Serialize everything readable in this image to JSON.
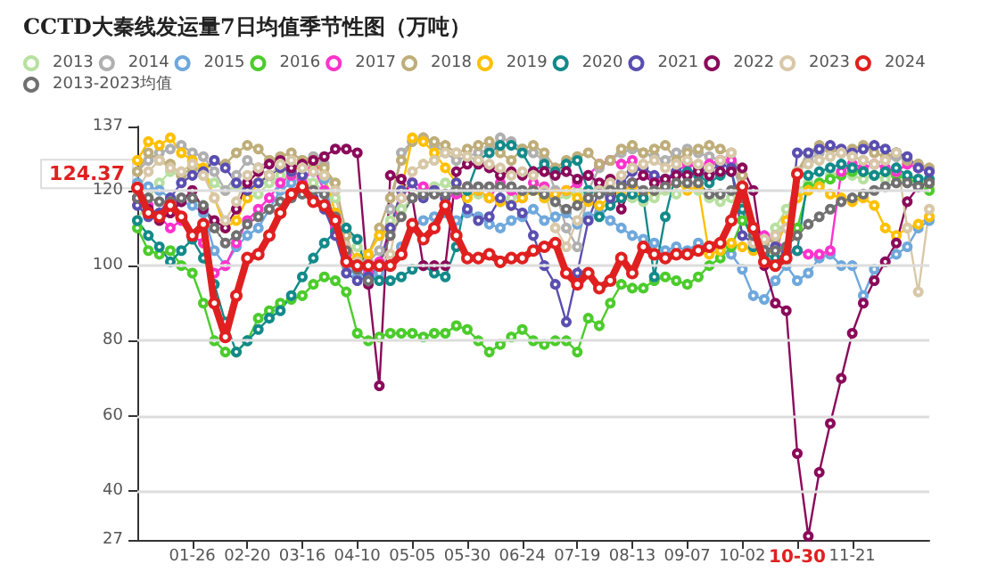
{
  "chart_data": {
    "type": "line",
    "title": "CCTD大秦线发运量7日均值季节性图（万吨）",
    "categories": [
      null,
      null,
      null,
      null,
      null,
      "01-26",
      null,
      null,
      null,
      null,
      "02-20",
      null,
      null,
      null,
      null,
      "03-16",
      null,
      null,
      null,
      null,
      "04-10",
      null,
      null,
      null,
      null,
      "05-05",
      null,
      null,
      null,
      null,
      "05-30",
      null,
      null,
      null,
      null,
      "06-24",
      null,
      null,
      null,
      null,
      "07-19",
      null,
      null,
      null,
      null,
      "08-13",
      null,
      null,
      null,
      null,
      "09-07",
      null,
      null,
      null,
      null,
      "10-02",
      null,
      null,
      null,
      null,
      "10-30",
      null,
      null,
      null,
      null,
      "11-21",
      null,
      null,
      null,
      null,
      null,
      null,
      null
    ],
    "series": [
      {
        "name": "2013",
        "color": "#b8e0a0",
        "values": [
          112,
          118,
          122,
          125,
          124,
          126,
          124,
          122,
          120,
          121,
          118,
          119,
          122,
          124,
          123,
          124,
          122,
          120,
          118,
          110,
          105,
          103,
          108,
          112,
          115,
          118,
          120,
          121,
          122,
          120,
          121,
          119,
          118,
          117,
          118,
          119,
          120,
          118,
          117,
          119,
          120,
          118,
          121,
          120,
          119,
          118,
          117,
          118,
          120,
          119,
          121,
          120,
          118,
          117,
          118,
          116,
          108,
          106,
          110,
          115,
          120,
          122,
          121,
          124,
          125,
          124,
          123,
          124,
          123,
          125,
          124,
          123,
          121
        ]
      },
      {
        "name": "2014",
        "color": "#b0b0b0",
        "values": [
          125,
          128,
          130,
          131,
          132,
          130,
          129,
          125,
          120,
          124,
          128,
          126,
          128,
          127,
          125,
          128,
          129,
          127,
          120,
          103,
          100,
          101,
          104,
          115,
          130,
          133,
          134,
          132,
          130,
          128,
          129,
          130,
          131,
          134,
          133,
          131,
          130,
          128,
          120,
          110,
          105,
          120,
          126,
          128,
          130,
          131,
          130,
          129,
          128,
          130,
          131,
          130,
          129,
          128,
          127,
          120,
          105,
          106,
          108,
          112,
          125,
          128,
          130,
          131,
          130,
          129,
          128,
          127,
          128,
          129,
          128,
          127,
          125
        ]
      },
      {
        "name": "2015",
        "color": "#6fa8dc",
        "values": [
          122,
          121,
          120,
          118,
          117,
          116,
          114,
          104,
          100,
          105,
          108,
          110,
          115,
          120,
          122,
          124,
          125,
          123,
          110,
          100,
          97,
          96,
          98,
          100,
          105,
          110,
          112,
          113,
          114,
          112,
          114,
          113,
          111,
          110,
          112,
          113,
          115,
          112,
          113,
          114,
          111,
          113,
          114,
          112,
          110,
          108,
          107,
          106,
          104,
          105,
          104,
          106,
          105,
          104,
          103,
          99,
          92,
          91,
          96,
          100,
          96,
          98,
          102,
          103,
          100,
          100,
          92,
          99,
          101,
          103,
          105,
          110,
          112
        ]
      },
      {
        "name": "2016",
        "color": "#4ccc2c",
        "values": [
          110,
          104,
          103,
          104,
          100,
          98,
          90,
          80,
          77,
          77,
          80,
          86,
          88,
          90,
          91,
          92,
          95,
          97,
          96,
          93,
          82,
          80,
          81,
          82,
          82,
          82,
          81,
          82,
          82,
          84,
          83,
          80,
          77,
          79,
          81,
          83,
          80,
          79,
          80,
          80,
          77,
          86,
          84,
          90,
          95,
          94,
          94,
          96,
          97,
          96,
          95,
          97,
          100,
          102,
          105,
          112,
          108,
          103,
          104,
          105,
          110,
          121,
          122,
          123,
          124,
          125,
          125,
          124,
          125,
          124,
          123,
          122,
          120
        ]
      },
      {
        "name": "2017",
        "color": "#ff33cc",
        "values": [
          118,
          116,
          113,
          110,
          112,
          108,
          106,
          98,
          100,
          106,
          112,
          115,
          118,
          122,
          124,
          122,
          126,
          120,
          110,
          103,
          100,
          98,
          101,
          110,
          118,
          122,
          121,
          120,
          118,
          119,
          121,
          120,
          118,
          122,
          120,
          118,
          122,
          121,
          119,
          120,
          122,
          124,
          127,
          128,
          127,
          128,
          124,
          123,
          122,
          125,
          127,
          126,
          127,
          128,
          128,
          124,
          110,
          108,
          107,
          104,
          104,
          103,
          103,
          104,
          125,
          127,
          126,
          127,
          126,
          125,
          127,
          126,
          125
        ]
      },
      {
        "name": "2018",
        "color": "#bfae7a",
        "values": [
          125,
          130,
          128,
          127,
          124,
          126,
          125,
          128,
          127,
          130,
          132,
          131,
          128,
          129,
          130,
          128,
          127,
          126,
          122,
          108,
          100,
          103,
          110,
          118,
          128,
          133,
          134,
          133,
          132,
          130,
          131,
          132,
          133,
          130,
          128,
          131,
          132,
          130,
          126,
          128,
          129,
          130,
          127,
          128,
          131,
          132,
          130,
          131,
          132,
          128,
          130,
          131,
          132,
          131,
          130,
          124,
          108,
          106,
          107,
          110,
          125,
          130,
          132,
          131,
          130,
          131,
          132,
          130,
          129,
          130,
          128,
          127,
          126
        ]
      },
      {
        "name": "2019",
        "color": "#ffc000",
        "values": [
          128,
          133,
          132,
          134,
          130,
          128,
          126,
          118,
          110,
          112,
          118,
          122,
          124,
          126,
          125,
          127,
          128,
          124,
          114,
          104,
          102,
          103,
          108,
          110,
          120,
          134,
          133,
          130,
          126,
          122,
          118,
          120,
          118,
          117,
          116,
          118,
          120,
          118,
          119,
          120,
          118,
          117,
          116,
          118,
          120,
          121,
          119,
          120,
          121,
          122,
          120,
          121,
          103,
          104,
          106,
          105,
          104,
          103,
          104,
          112,
          118,
          120,
          121,
          119,
          118,
          117,
          118,
          116,
          110,
          108,
          110,
          111,
          113
        ]
      },
      {
        "name": "2020",
        "color": "#138a8a",
        "values": [
          112,
          108,
          105,
          101,
          104,
          107,
          102,
          95,
          85,
          77,
          80,
          83,
          86,
          88,
          92,
          97,
          102,
          106,
          109,
          110,
          107,
          97,
          96,
          96,
          97,
          99,
          100,
          98,
          97,
          105,
          120,
          128,
          130,
          132,
          132,
          130,
          125,
          127,
          125,
          127,
          128,
          120,
          113,
          116,
          118,
          119,
          118,
          97,
          113,
          125,
          125,
          124,
          122,
          124,
          125,
          115,
          105,
          103,
          102,
          103,
          104,
          124,
          125,
          126,
          127,
          126,
          125,
          124,
          125,
          126,
          124,
          123,
          123
        ]
      },
      {
        "name": "2021",
        "color": "#5a4fb0",
        "values": [
          116,
          113,
          114,
          118,
          122,
          124,
          125,
          128,
          126,
          122,
          120,
          122,
          124,
          126,
          125,
          124,
          118,
          115,
          108,
          98,
          96,
          97,
          100,
          110,
          120,
          122,
          118,
          120,
          118,
          122,
          115,
          112,
          113,
          118,
          116,
          114,
          108,
          100,
          95,
          85,
          98,
          112,
          120,
          118,
          122,
          125,
          126,
          124,
          123,
          125,
          124,
          126,
          125,
          127,
          126,
          108,
          106,
          104,
          105,
          103,
          130,
          130,
          131,
          132,
          131,
          130,
          131,
          132,
          131,
          130,
          129,
          126,
          125
        ]
      },
      {
        "name": "2022",
        "color": "#8b0a5a",
        "values": [
          118,
          115,
          112,
          114,
          117,
          120,
          115,
          112,
          110,
          115,
          122,
          125,
          127,
          128,
          126,
          127,
          128,
          129,
          131,
          131,
          130,
          95,
          68,
          124,
          123,
          118,
          100,
          100,
          100,
          125,
          127,
          127,
          126,
          124,
          125,
          124,
          125,
          125,
          124,
          125,
          123,
          124,
          122,
          123,
          115,
          122,
          124,
          122,
          123,
          124,
          124,
          125,
          124,
          125,
          125,
          126,
          120,
          100,
          90,
          88,
          50,
          28,
          45,
          58,
          70,
          82,
          90,
          96,
          101,
          106,
          117,
          121,
          122
        ]
      },
      {
        "name": "2023",
        "color": "#d8c8a8",
        "values": [
          120,
          125,
          128,
          126,
          125,
          127,
          124,
          118,
          112,
          117,
          124,
          126,
          124,
          127,
          128,
          126,
          125,
          124,
          120,
          105,
          101,
          100,
          100,
          103,
          118,
          125,
          127,
          128,
          130,
          130,
          129,
          128,
          127,
          126,
          124,
          125,
          124,
          120,
          110,
          105,
          112,
          118,
          120,
          122,
          124,
          126,
          127,
          128,
          126,
          127,
          128,
          127,
          126,
          128,
          130,
          120,
          106,
          107,
          108,
          110,
          125,
          127,
          128,
          129,
          130,
          129,
          128,
          127,
          128,
          130,
          110,
          93,
          115
        ]
      },
      {
        "name": "2024",
        "color": "#e02020",
        "values": [
          120.7,
          114,
          113,
          116,
          113,
          108,
          111,
          90,
          81,
          92,
          102,
          103,
          108,
          114,
          119,
          121,
          117,
          116,
          112,
          101,
          100,
          100,
          100,
          100,
          103,
          111,
          107,
          110,
          116,
          108,
          102,
          102,
          103,
          101,
          102,
          102,
          104,
          105,
          106,
          98,
          95,
          98,
          94,
          96,
          102,
          98,
          105,
          103,
          102,
          103,
          103,
          104,
          105,
          106,
          112,
          121,
          110,
          101,
          100,
          102,
          124.37,
          null,
          null,
          null,
          null,
          null,
          null,
          null,
          null,
          null,
          null,
          null,
          null
        ]
      },
      {
        "name": "2013-2023均值",
        "color": "#707070",
        "line_style": "dotted",
        "values": [
          118,
          118,
          117,
          117,
          118,
          118,
          116,
          110,
          106,
          108,
          111,
          113,
          115,
          117,
          118,
          119,
          120,
          119,
          113,
          104,
          99,
          96,
          100,
          108,
          113,
          118,
          119,
          119,
          119,
          120,
          121,
          121,
          121,
          121,
          121,
          120,
          120,
          119,
          117,
          115,
          116,
          118,
          119,
          120,
          121,
          122,
          120,
          120,
          121,
          122,
          122,
          122,
          119,
          119,
          120,
          118,
          108,
          104,
          104,
          105,
          108,
          111,
          113,
          115,
          117,
          118,
          119,
          120,
          121,
          122,
          122,
          121,
          122
        ]
      }
    ],
    "ylim": [
      27,
      137
    ],
    "yticks": [
      27,
      40,
      60,
      80,
      100,
      120,
      137
    ],
    "annotations": [
      "124.37"
    ],
    "grid": "y",
    "legend": "top left",
    "marker": "circle",
    "line_style": "solid"
  }
}
